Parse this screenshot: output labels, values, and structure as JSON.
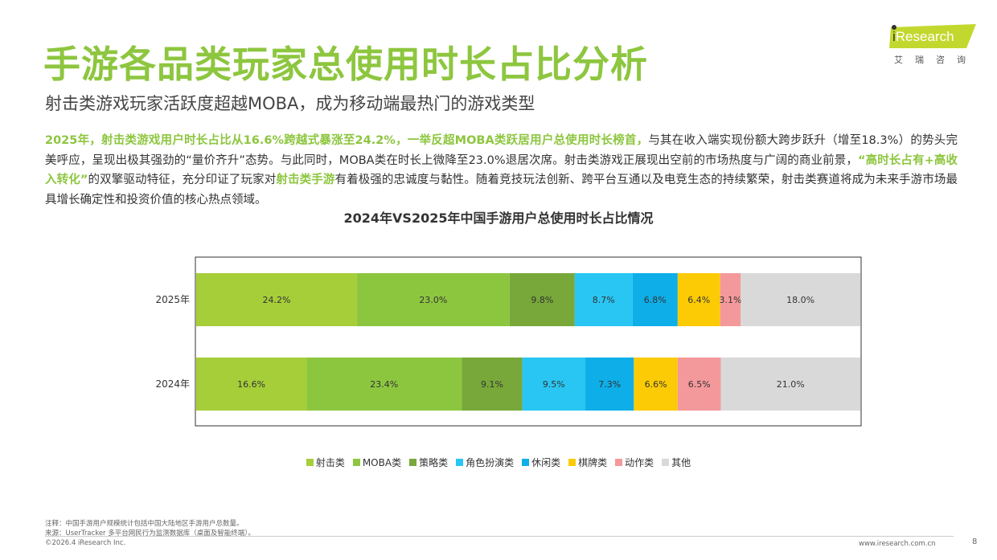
{
  "header": {
    "title": "手游各品类玩家总使用时长占比分析",
    "subtitle": "射击类游戏玩家活跃度超越MOBA，成为移动端最热门的游戏类型"
  },
  "logo": {
    "i": "i",
    "research": "Research",
    "cn": "艾瑞咨询"
  },
  "paragraph": {
    "p1_hl": "2025年，射击类游戏用户时长占比从16.6%跨越式暴涨至24.2%，一举反超MOBA类跃居用户总使用时长榜首，",
    "p2": "与其在收入端实现份额大跨步跃升（增至18.3%）的势头完美呼应，呈现出极其强劲的“量价齐升”态势。与此同时，MOBA类在时长上微降至23.0%退居次席。射击类游戏正展现出空前的市场热度与广阔的商业前景，",
    "p3_hl": "“高时长占有+高收入转化”",
    "p4": "的双擎驱动特征，充分印证了玩家对",
    "p5_hl": "射击类手游",
    "p6": "有着极强的忠诚度与黏性。随着竞技玩法创新、跨平台互通以及电竞生态的持续繁荣，射击类赛道将成为未来手游市场最具增长确定性和投资价值的核心热点领域。"
  },
  "chart_data": {
    "type": "bar",
    "orientation": "horizontal",
    "stacked": true,
    "title": "2024年VS2025年中国手游用户总使用时长占比情况",
    "categories": [
      "2025年",
      "2024年"
    ],
    "series": [
      {
        "name": "射击类",
        "values": [
          24.2,
          16.6
        ],
        "color": "#a6ce39"
      },
      {
        "name": "MOBA类",
        "values": [
          23.0,
          23.4
        ],
        "color": "#8cc63f"
      },
      {
        "name": "策略类",
        "values": [
          9.8,
          9.1
        ],
        "color": "#78a83a"
      },
      {
        "name": "角色扮演类",
        "values": [
          8.7,
          9.5
        ],
        "color": "#29c6f3"
      },
      {
        "name": "休闲类",
        "values": [
          6.8,
          7.3
        ],
        "color": "#0eaee8"
      },
      {
        "name": "棋牌类",
        "values": [
          6.4,
          6.6
        ],
        "color": "#fccb05"
      },
      {
        "name": "动作类",
        "values": [
          3.1,
          6.5
        ],
        "color": "#f4999b"
      },
      {
        "name": "其他",
        "values": [
          18.0,
          21.0
        ],
        "color": "#d9d9d9"
      }
    ],
    "value_labels": [
      [
        "24.2%",
        "23.0%",
        "9.8%",
        "8.7%",
        "6.8%",
        "6.4%",
        "3.1%",
        "18.0%"
      ],
      [
        "16.6%",
        "23.4%",
        "9.1%",
        "9.5%",
        "7.3%",
        "6.6%",
        "6.5%",
        "21.0%"
      ]
    ],
    "xlim": [
      0,
      100
    ],
    "legend_position": "bottom",
    "grid": false
  },
  "footer": {
    "note": "注释：中国手游用户规模统计包括中国大陆地区手游用户总数量。",
    "source": "来源：UserTracker 多平台网民行为监测数据库（桌面及智能终端）。",
    "copyright": "©2026.4 iResearch Inc.",
    "url": "www.iresearch.com.cn",
    "page": "8"
  },
  "colors": {
    "accent": "#8dc63f"
  }
}
